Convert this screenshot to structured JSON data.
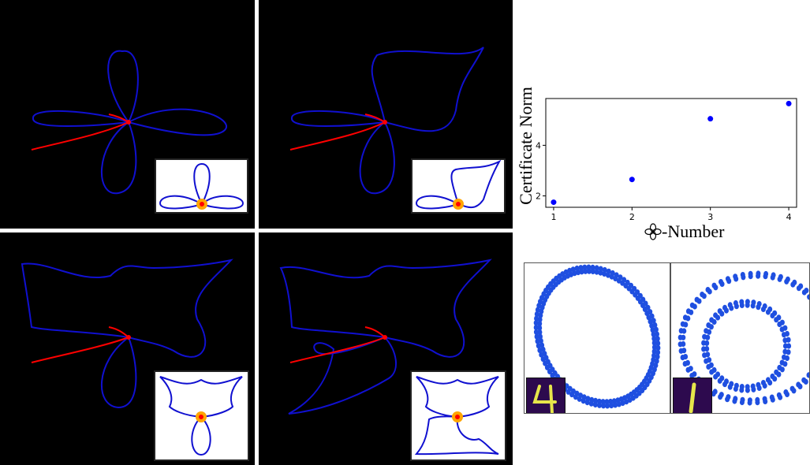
{
  "colors": {
    "background": "#000000",
    "loop_curve": "#1010d0",
    "fixed_curve": "#ff0000",
    "point_fill": "#ff0000",
    "point_ring": "#ffa500",
    "scatter_point": "#0000ff",
    "pointcloud": "#1f4fe0",
    "digit_bg": "#2d0a4e",
    "digit_stroke": "#e6e64a"
  },
  "panels": [
    {
      "name": "three-petal-curve",
      "shape": "three-petal"
    },
    {
      "name": "two-petal-curve",
      "shape": "two-petal"
    },
    {
      "name": "one-petal-curve",
      "shape": "one-petal"
    },
    {
      "name": "zero-petal-curve",
      "shape": "zero-petal"
    }
  ],
  "pointclouds": [
    {
      "name": "digit-4-cloud",
      "digit": "4",
      "loops": 1
    },
    {
      "name": "digit-1-cloud",
      "digit": "1",
      "loops": 2
    }
  ],
  "chart_data": {
    "type": "scatter",
    "title": "",
    "xlabel": "-Number",
    "xlabel_icon": "four-petal-flower-icon",
    "ylabel": "Certificate Norm",
    "x": [
      1,
      2,
      3,
      4
    ],
    "y": [
      1.75,
      2.65,
      5.05,
      5.65
    ],
    "xlim": [
      0.9,
      4.1
    ],
    "ylim": [
      1.55,
      5.85
    ],
    "xticks": [
      "1",
      "2",
      "3",
      "4"
    ],
    "yticks": [
      "2",
      "4"
    ],
    "grid": false,
    "legend": "none"
  }
}
